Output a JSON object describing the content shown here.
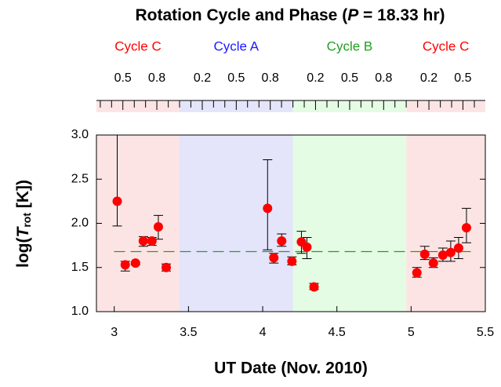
{
  "chart_data": {
    "type": "scatter",
    "title_prefix": "Rotation Cycle and Phase  (",
    "title_var": "P",
    "title_suffix": " = 18.33 hr)",
    "xlabel": "UT Date  (Nov. 2010)",
    "ylabel_prefix": "log(",
    "ylabel_var": "T",
    "ylabel_sub": "rot",
    "ylabel_suffix": " [K])",
    "xlim": [
      2.88,
      5.5
    ],
    "ylim": [
      1.0,
      3.0
    ],
    "xticks": [
      3,
      3.5,
      4,
      4.5,
      5,
      5.5
    ],
    "yticks": [
      {
        "value": 1.0,
        "label": "1.0"
      },
      1.5,
      {
        "value": 2.0,
        "label": "2.0"
      },
      2.5,
      {
        "value": 3.0,
        "label": "3.0"
      }
    ],
    "cycles": [
      {
        "name": "Cycle C",
        "color": "#ff0000",
        "shade": "#fde4e4",
        "span": [
          2.88,
          3.44
        ]
      },
      {
        "name": "Cycle A",
        "color": "#1a1aff",
        "shade": "#e4e4fb",
        "span": [
          3.44,
          4.204
        ]
      },
      {
        "name": "Cycle B",
        "color": "#1ea01e",
        "shade": "#e4fbe4",
        "span": [
          4.204,
          4.968
        ]
      },
      {
        "name": "Cycle C",
        "color": "#ff0000",
        "shade": "#fde4e4",
        "span": [
          4.968,
          5.5
        ]
      }
    ],
    "x2ticks": [
      {
        "value": 3.058,
        "label": "0.5"
      },
      {
        "value": 3.287,
        "label": "0.8"
      },
      {
        "value": 3.593,
        "label": "0.2"
      },
      {
        "value": 3.822,
        "label": "0.5"
      },
      {
        "value": 4.051,
        "label": "0.8"
      },
      {
        "value": 4.356,
        "label": "0.2"
      },
      {
        "value": 4.586,
        "label": "0.5"
      },
      {
        "value": 4.815,
        "label": "0.8"
      },
      {
        "value": 5.12,
        "label": "0.2"
      },
      {
        "value": 5.349,
        "label": "0.5"
      }
    ],
    "x2minor_ticks": [
      2.906,
      2.982,
      3.135,
      3.211,
      3.364,
      3.44,
      3.516,
      3.669,
      3.745,
      3.898,
      3.975,
      4.127,
      4.204,
      4.28,
      4.433,
      4.509,
      4.662,
      4.738,
      4.891,
      4.967,
      5.044,
      5.197,
      5.273,
      5.426
    ],
    "reference_line": 1.68,
    "reference_color": "#2a9a2a",
    "series": [
      {
        "color": "#ff0000",
        "x": [
          3.02,
          3.074,
          3.143,
          3.196,
          3.254,
          3.297,
          3.35,
          4.033,
          4.075,
          4.128,
          4.197,
          4.261,
          4.298,
          4.346,
          5.039,
          5.092,
          5.15,
          5.214,
          5.267,
          5.32,
          5.373
        ],
        "y": [
          2.25,
          1.53,
          1.55,
          1.8,
          1.8,
          1.96,
          1.5,
          2.17,
          1.61,
          1.8,
          1.57,
          1.79,
          1.73,
          1.28,
          1.44,
          1.65,
          1.55,
          1.64,
          1.67,
          1.72,
          1.95
        ],
        "err_low": [
          1.97,
          1.46,
          1.53,
          1.74,
          1.75,
          1.82,
          1.46,
          1.7,
          1.55,
          1.74,
          1.53,
          1.66,
          1.6,
          1.25,
          1.39,
          1.59,
          1.5,
          1.57,
          1.57,
          1.6,
          1.78
        ],
        "err_high": [
          3.0,
          1.57,
          1.56,
          1.85,
          1.84,
          2.09,
          1.54,
          2.72,
          1.66,
          1.88,
          1.62,
          1.91,
          1.84,
          1.32,
          1.5,
          1.74,
          1.61,
          1.72,
          1.8,
          1.84,
          2.17
        ]
      }
    ]
  }
}
